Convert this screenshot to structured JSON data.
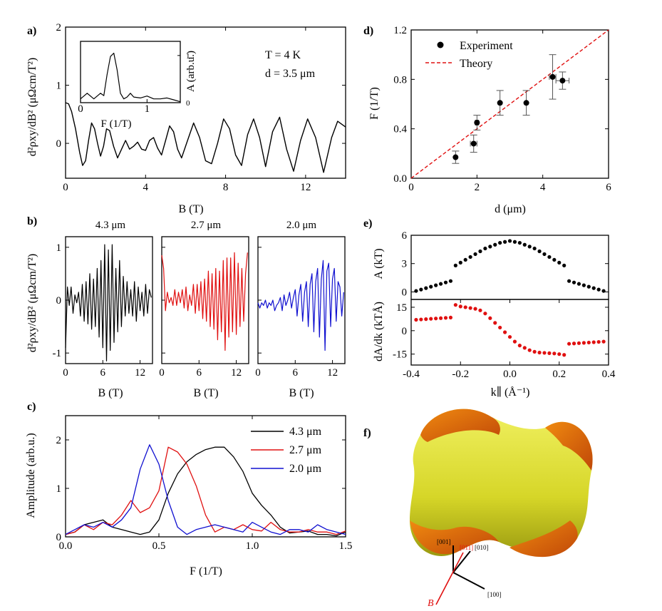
{
  "panels": {
    "a": {
      "label": "a)",
      "xlabel": "B (T)",
      "ylabel": "d²ρxy/dB² (μΩcm/T²)",
      "ann_T": "T = 4 K",
      "ann_d": "d = 3.5 μm",
      "inset": {
        "xlabel": "F (1/T)",
        "ylabel": "A (arb.u.)"
      }
    },
    "b": {
      "label": "b)",
      "ylabel": "d²ρxy/dB² (μΩcm/T²)",
      "xlabel": "B (T)",
      "titles": [
        "4.3 μm",
        "2.7 μm",
        "2.0 μm"
      ]
    },
    "c": {
      "label": "c)",
      "xlabel": "F (1/T)",
      "ylabel": "Amplitude (arb.u.)"
    },
    "d": {
      "label": "d)",
      "xlabel": "d (μm)",
      "ylabel": "F (1/T)",
      "legend": [
        "Experiment",
        "Theory"
      ]
    },
    "e": {
      "label": "e)",
      "xlabel": "k∥ (Å⁻¹)",
      "ylabel_top": "A (kT)",
      "ylabel_bottom": "dA/dk (kTÅ)"
    },
    "f": {
      "label": "f)",
      "axes": [
        "[001]",
        "[011]",
        "[010]",
        "[100]",
        "B"
      ]
    }
  },
  "chart_data": [
    {
      "id": "a",
      "type": "line",
      "xlim": [
        0,
        14
      ],
      "ylim": [
        -0.6,
        2
      ],
      "xticks": [
        "0",
        "4",
        "8",
        "12"
      ],
      "yticks": [
        "0",
        "1",
        "2"
      ],
      "x": [
        0,
        0.15,
        0.3,
        0.5,
        0.7,
        0.85,
        1.0,
        1.15,
        1.3,
        1.45,
        1.6,
        1.75,
        1.9,
        2.05,
        2.2,
        2.4,
        2.6,
        2.8,
        3.0,
        3.2,
        3.4,
        3.6,
        3.8,
        4.0,
        4.2,
        4.4,
        4.6,
        4.8,
        5.0,
        5.2,
        5.4,
        5.6,
        5.8,
        6.1,
        6.4,
        6.7,
        7.0,
        7.3,
        7.6,
        7.9,
        8.2,
        8.5,
        8.8,
        9.1,
        9.4,
        9.7,
        10.0,
        10.35,
        10.7,
        11.05,
        11.4,
        11.75,
        12.1,
        12.5,
        12.9,
        13.3,
        13.6,
        14.0
      ],
      "y": [
        0.7,
        0.68,
        0.55,
        0.25,
        -0.15,
        -0.38,
        -0.3,
        0.05,
        0.35,
        0.25,
        0.0,
        -0.22,
        -0.05,
        0.25,
        0.22,
        -0.05,
        -0.25,
        -0.1,
        0.05,
        -0.1,
        -0.05,
        0.02,
        -0.1,
        -0.12,
        0.05,
        0.1,
        -0.08,
        -0.2,
        0.05,
        0.3,
        0.2,
        -0.1,
        -0.25,
        0.05,
        0.35,
        0.1,
        -0.3,
        -0.35,
        0.0,
        0.42,
        0.25,
        -0.2,
        -0.38,
        0.15,
        0.42,
        0.1,
        -0.4,
        0.2,
        0.45,
        -0.1,
        -0.48,
        0.05,
        0.42,
        0.1,
        -0.5,
        0.1,
        0.38,
        0.28
      ],
      "inset": {
        "xlim": [
          0,
          1.5
        ],
        "ylim": [
          0,
          1.3
        ],
        "xticks": [
          "0",
          "1"
        ],
        "yticks": [
          "0",
          "1"
        ],
        "x": [
          0,
          0.1,
          0.2,
          0.3,
          0.35,
          0.4,
          0.45,
          0.5,
          0.55,
          0.6,
          0.65,
          0.7,
          0.75,
          0.8,
          0.9,
          1.0,
          1.1,
          1.2,
          1.3,
          1.4,
          1.5
        ],
        "y": [
          0.08,
          0.2,
          0.08,
          0.2,
          0.15,
          0.6,
          0.98,
          1.05,
          0.7,
          0.2,
          0.08,
          0.12,
          0.2,
          0.12,
          0.1,
          0.14,
          0.08,
          0.08,
          0.1,
          0.06,
          0.02
        ]
      }
    },
    {
      "id": "b",
      "type": "line",
      "xlim": [
        0,
        14
      ],
      "ylim": [
        -1.2,
        1.2
      ],
      "xticks": [
        "0",
        "6",
        "12"
      ],
      "yticks": [
        "-1",
        "0",
        "1"
      ],
      "series": [
        {
          "name": "4.3 μm",
          "color": "#000000",
          "x": [
            0,
            0.3,
            0.6,
            0.9,
            1.2,
            1.5,
            1.8,
            2.1,
            2.4,
            2.7,
            3.0,
            3.3,
            3.6,
            3.9,
            4.2,
            4.5,
            4.8,
            5.1,
            5.4,
            5.7,
            6.0,
            6.3,
            6.6,
            6.9,
            7.2,
            7.5,
            7.8,
            8.1,
            8.4,
            8.7,
            9.0,
            9.3,
            9.6,
            9.9,
            10.2,
            10.5,
            10.8,
            11.1,
            11.4,
            11.7,
            12.0,
            12.3,
            12.6,
            12.9,
            13.2,
            13.5,
            13.8
          ],
          "y": [
            -0.9,
            0.25,
            -0.1,
            0.25,
            -0.25,
            0.1,
            -0.05,
            0.15,
            -0.3,
            0.3,
            -0.4,
            0.35,
            -0.45,
            0.5,
            -0.55,
            0.4,
            -0.5,
            0.6,
            -0.7,
            0.75,
            -0.9,
            1.05,
            -1.15,
            0.95,
            -0.95,
            1.05,
            -0.8,
            0.6,
            -0.6,
            0.75,
            -0.5,
            0.45,
            -0.3,
            0.35,
            -0.25,
            0.2,
            -0.3,
            0.35,
            -0.4,
            0.25,
            -0.2,
            0.15,
            -0.3,
            0.3,
            -0.25,
            0.2,
            0.05
          ]
        },
        {
          "name": "2.7 μm",
          "color": "#e01010",
          "x": [
            0,
            0.3,
            0.6,
            0.9,
            1.2,
            1.5,
            1.8,
            2.1,
            2.4,
            2.7,
            3.0,
            3.3,
            3.6,
            3.9,
            4.2,
            4.5,
            4.8,
            5.1,
            5.4,
            5.7,
            6.0,
            6.3,
            6.6,
            6.9,
            7.2,
            7.5,
            7.8,
            8.1,
            8.4,
            8.7,
            9.0,
            9.3,
            9.6,
            9.9,
            10.2,
            10.5,
            10.8,
            11.1,
            11.4,
            11.7,
            12.0,
            12.3,
            12.6,
            12.9,
            13.2,
            13.5,
            13.8
          ],
          "y": [
            0.85,
            0.6,
            -0.2,
            0.15,
            -0.05,
            0.05,
            -0.1,
            0.2,
            -0.1,
            0.15,
            -0.05,
            0.2,
            -0.15,
            0.25,
            -0.2,
            0.1,
            -0.1,
            0.3,
            -0.25,
            0.3,
            -0.2,
            0.35,
            -0.35,
            0.4,
            -0.4,
            0.55,
            -0.5,
            0.5,
            -0.55,
            0.6,
            -0.75,
            0.55,
            -0.6,
            0.75,
            -0.95,
            0.8,
            -0.7,
            0.8,
            -0.6,
            0.9,
            -0.65,
            0.7,
            -0.5,
            0.6,
            -0.4,
            0.5,
            0.9
          ]
        },
        {
          "name": "2.0 μm",
          "color": "#1010d0",
          "x": [
            0,
            0.3,
            0.6,
            0.9,
            1.2,
            1.5,
            1.8,
            2.1,
            2.4,
            2.7,
            3.0,
            3.3,
            3.6,
            3.9,
            4.2,
            4.5,
            4.8,
            5.1,
            5.4,
            5.7,
            6.0,
            6.3,
            6.6,
            6.9,
            7.2,
            7.5,
            7.8,
            8.1,
            8.4,
            8.7,
            9.0,
            9.3,
            9.6,
            9.9,
            10.2,
            10.5,
            10.8,
            11.1,
            11.4,
            11.7,
            12.0,
            12.3,
            12.6,
            12.9,
            13.2,
            13.5,
            13.8
          ],
          "y": [
            -0.05,
            -0.15,
            -0.05,
            -0.1,
            0.0,
            -0.15,
            -0.05,
            -0.1,
            0.0,
            -0.2,
            -0.1,
            -0.05,
            0.05,
            -0.2,
            0.1,
            -0.1,
            0.0,
            0.15,
            -0.15,
            0.05,
            0.2,
            -0.3,
            0.1,
            0.3,
            -0.4,
            0.15,
            0.35,
            -0.5,
            0.3,
            0.5,
            -0.6,
            0.35,
            0.6,
            -0.7,
            0.4,
            0.75,
            -0.95,
            0.55,
            0.7,
            -0.5,
            0.4,
            0.6,
            -0.4,
            0.35,
            0.25,
            -0.3,
            0.15
          ]
        }
      ]
    },
    {
      "id": "c",
      "type": "line",
      "xlim": [
        0,
        1.5
      ],
      "ylim": [
        0,
        2.5
      ],
      "xticks": [
        "0.0",
        "0.5",
        "1.0",
        "1.5"
      ],
      "yticks": [
        "0",
        "1",
        "2"
      ],
      "legend_position": "top-right",
      "series": [
        {
          "name": "4.3 μm",
          "color": "#000000",
          "x": [
            0,
            0.05,
            0.1,
            0.15,
            0.2,
            0.25,
            0.3,
            0.35,
            0.4,
            0.45,
            0.5,
            0.55,
            0.6,
            0.65,
            0.7,
            0.75,
            0.8,
            0.85,
            0.9,
            0.95,
            1.0,
            1.05,
            1.1,
            1.15,
            1.2,
            1.25,
            1.3,
            1.35,
            1.4,
            1.45,
            1.5
          ],
          "y": [
            0.05,
            0.1,
            0.25,
            0.3,
            0.35,
            0.2,
            0.15,
            0.1,
            0.05,
            0.1,
            0.35,
            0.9,
            1.3,
            1.55,
            1.7,
            1.8,
            1.85,
            1.85,
            1.65,
            1.35,
            0.9,
            0.65,
            0.45,
            0.2,
            0.08,
            0.1,
            0.12,
            0.05,
            0.05,
            0.02,
            0.1
          ]
        },
        {
          "name": "2.7 μm",
          "color": "#e01010",
          "x": [
            0,
            0.05,
            0.1,
            0.15,
            0.2,
            0.25,
            0.3,
            0.35,
            0.4,
            0.45,
            0.5,
            0.55,
            0.6,
            0.65,
            0.7,
            0.75,
            0.8,
            0.85,
            0.9,
            0.95,
            1.0,
            1.05,
            1.1,
            1.15,
            1.2,
            1.25,
            1.3,
            1.35,
            1.4,
            1.45,
            1.5
          ],
          "y": [
            0.05,
            0.1,
            0.25,
            0.15,
            0.3,
            0.25,
            0.45,
            0.75,
            0.5,
            0.6,
            0.95,
            1.85,
            1.75,
            1.5,
            1.05,
            0.45,
            0.1,
            0.2,
            0.15,
            0.25,
            0.15,
            0.12,
            0.3,
            0.15,
            0.1,
            0.1,
            0.15,
            0.1,
            0.1,
            0.05,
            0.12
          ]
        },
        {
          "name": "2.0 μm",
          "color": "#1010d0",
          "x": [
            0,
            0.05,
            0.1,
            0.15,
            0.2,
            0.25,
            0.3,
            0.35,
            0.4,
            0.45,
            0.5,
            0.55,
            0.6,
            0.65,
            0.7,
            0.75,
            0.8,
            0.85,
            0.9,
            0.95,
            1.0,
            1.05,
            1.1,
            1.15,
            1.2,
            1.25,
            1.3,
            1.35,
            1.4,
            1.45,
            1.5
          ],
          "y": [
            0.05,
            0.15,
            0.25,
            0.2,
            0.3,
            0.2,
            0.35,
            0.6,
            1.4,
            1.9,
            1.5,
            0.75,
            0.2,
            0.05,
            0.15,
            0.2,
            0.25,
            0.2,
            0.15,
            0.1,
            0.3,
            0.2,
            0.1,
            0.05,
            0.15,
            0.15,
            0.1,
            0.25,
            0.15,
            0.1,
            0.05
          ]
        }
      ]
    },
    {
      "id": "d",
      "type": "scatter",
      "xlim": [
        0,
        6
      ],
      "ylim": [
        0,
        1.2
      ],
      "xticks": [
        "0",
        "2",
        "4",
        "6"
      ],
      "yticks": [
        "0.0",
        "0.4",
        "0.8",
        "1.2"
      ],
      "legend_position": "top-left",
      "series": [
        {
          "name": "Experiment",
          "color": "#000000",
          "points": [
            {
              "x": 1.35,
              "y": 0.17,
              "yerr": 0.05,
              "xerr": 0
            },
            {
              "x": 1.9,
              "y": 0.28,
              "yerr": 0.07,
              "xerr": 0.1
            },
            {
              "x": 2.0,
              "y": 0.45,
              "yerr": 0.06,
              "xerr": 0.05
            },
            {
              "x": 2.7,
              "y": 0.61,
              "yerr": 0.1,
              "xerr": 0
            },
            {
              "x": 3.5,
              "y": 0.61,
              "yerr": 0.1,
              "xerr": 0
            },
            {
              "x": 4.3,
              "y": 0.82,
              "yerr": 0.18,
              "xerr": 0.1
            },
            {
              "x": 4.6,
              "y": 0.79,
              "yerr": 0.07,
              "xerr": 0.2
            }
          ]
        },
        {
          "name": "Theory",
          "color": "#e01010",
          "line": {
            "x": [
              0,
              6
            ],
            "y": [
              0,
              1.2
            ]
          }
        }
      ]
    },
    {
      "id": "e",
      "type": "scatter",
      "xlim": [
        -0.4,
        0.4
      ],
      "xticks": [
        "-0.4",
        "-0.2",
        "0.0",
        "0.2",
        "0.4"
      ],
      "top": {
        "ylim": [
          -0.8,
          6
        ],
        "yticks": [
          "0",
          "3",
          "6"
        ],
        "color": "#000000",
        "x": [
          -0.38,
          -0.36,
          -0.34,
          -0.32,
          -0.3,
          -0.28,
          -0.26,
          -0.24,
          -0.22,
          -0.2,
          -0.18,
          -0.16,
          -0.14,
          -0.12,
          -0.1,
          -0.08,
          -0.06,
          -0.04,
          -0.02,
          0.0,
          0.02,
          0.04,
          0.06,
          0.08,
          0.1,
          0.12,
          0.14,
          0.16,
          0.18,
          0.2,
          0.22,
          0.24,
          0.26,
          0.28,
          0.3,
          0.32,
          0.34,
          0.36,
          0.38
        ],
        "y": [
          0.1,
          0.25,
          0.4,
          0.55,
          0.7,
          0.85,
          1.0,
          1.15,
          2.8,
          3.1,
          3.4,
          3.7,
          4.0,
          4.3,
          4.6,
          4.8,
          5.0,
          5.2,
          5.3,
          5.4,
          5.3,
          5.2,
          5.0,
          4.8,
          4.6,
          4.3,
          4.0,
          3.7,
          3.4,
          3.1,
          2.8,
          1.15,
          1.0,
          0.85,
          0.7,
          0.55,
          0.4,
          0.25,
          0.1
        ]
      },
      "bottom": {
        "ylim": [
          -22,
          20
        ],
        "yticks": [
          "-15",
          "0",
          "15"
        ],
        "color": "#e01010",
        "x": [
          -0.38,
          -0.36,
          -0.34,
          -0.32,
          -0.3,
          -0.28,
          -0.26,
          -0.24,
          -0.22,
          -0.2,
          -0.18,
          -0.16,
          -0.14,
          -0.12,
          -0.1,
          -0.08,
          -0.06,
          -0.04,
          -0.02,
          0.0,
          0.02,
          0.04,
          0.06,
          0.08,
          0.1,
          0.12,
          0.14,
          0.16,
          0.18,
          0.2,
          0.22,
          0.24,
          0.26,
          0.28,
          0.3,
          0.32,
          0.34,
          0.36,
          0.38
        ],
        "y": [
          7,
          7.2,
          7.4,
          7.6,
          7.8,
          8,
          8.2,
          8.4,
          16.5,
          15.5,
          15,
          14.5,
          14,
          13,
          11,
          8,
          5,
          2,
          -1,
          -4,
          -7,
          -9.5,
          -11,
          -12.5,
          -13.5,
          -14,
          -14.2,
          -14.4,
          -14.6,
          -15,
          -15.5,
          -8.4,
          -8.2,
          -8,
          -7.8,
          -7.6,
          -7.4,
          -7.2,
          -7
        ]
      }
    }
  ]
}
